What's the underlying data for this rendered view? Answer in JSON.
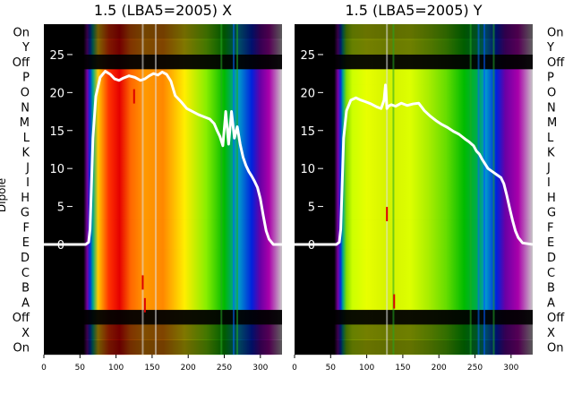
{
  "figure": {
    "ylabel": "Dipole",
    "left_row_labels": [
      "On",
      "Y",
      "Off",
      "P",
      "O",
      "N",
      "M",
      "L",
      "K",
      "J",
      "I",
      "H",
      "G",
      "F",
      "E",
      "D",
      "C",
      "B",
      "A",
      "Off",
      "X",
      "On"
    ],
    "right_row_labels": [
      "On",
      "Y",
      "Off",
      "P",
      "O",
      "N",
      "M",
      "L",
      "K",
      "J",
      "I",
      "H",
      "G",
      "F",
      "E",
      "D",
      "C",
      "B",
      "A",
      "Off",
      "X",
      "On"
    ]
  },
  "chart_data": [
    {
      "type": "heatmap",
      "title": "1.5 (LBA5=2005) X",
      "xlabel": "",
      "ylabel": "Dipole",
      "xlim": [
        0,
        330
      ],
      "x_ticks": [
        0,
        50,
        100,
        150,
        200,
        250,
        300
      ],
      "overlay_ylim": [
        -14.5,
        29
      ],
      "overlay_y_ticks": [
        0,
        5,
        10,
        15,
        20,
        25
      ],
      "colormap": "nipy_spectral",
      "grid": false,
      "bands": [
        {
          "label": "On",
          "intensity": 0.45
        },
        {
          "label": "X",
          "intensity": 0.5
        },
        {
          "label": "Off",
          "intensity": 0.05
        },
        {
          "label": "A",
          "intensity": 1.0
        },
        {
          "label": "B",
          "intensity": 1.0
        },
        {
          "label": "C",
          "intensity": 1.0
        },
        {
          "label": "D",
          "intensity": 1.0
        },
        {
          "label": "E",
          "intensity": 1.0
        },
        {
          "label": "F",
          "intensity": 1.0
        },
        {
          "label": "G",
          "intensity": 1.0
        },
        {
          "label": "H",
          "intensity": 1.0
        },
        {
          "label": "I",
          "intensity": 1.0
        },
        {
          "label": "J",
          "intensity": 1.0
        },
        {
          "label": "K",
          "intensity": 1.0
        },
        {
          "label": "L",
          "intensity": 1.0
        },
        {
          "label": "M",
          "intensity": 1.0
        },
        {
          "label": "N",
          "intensity": 1.0
        },
        {
          "label": "O",
          "intensity": 1.0
        },
        {
          "label": "P",
          "intensity": 1.0
        },
        {
          "label": "Off",
          "intensity": 0.05
        },
        {
          "label": "Y",
          "intensity": 0.5
        },
        {
          "label": "On",
          "intensity": 0.45
        }
      ],
      "spectrum_color_stops": [
        {
          "x": 0,
          "color": "#000000"
        },
        {
          "x": 55,
          "color": "#000000"
        },
        {
          "x": 60,
          "color": "#7a00a0"
        },
        {
          "x": 64,
          "color": "#0033dd"
        },
        {
          "x": 68,
          "color": "#00aa88"
        },
        {
          "x": 75,
          "color": "#ffcc00"
        },
        {
          "x": 90,
          "color": "#ff3300"
        },
        {
          "x": 105,
          "color": "#e60000"
        },
        {
          "x": 120,
          "color": "#ff6600"
        },
        {
          "x": 140,
          "color": "#ff9900"
        },
        {
          "x": 165,
          "color": "#ff8800"
        },
        {
          "x": 195,
          "color": "#ffee00"
        },
        {
          "x": 225,
          "color": "#88ee00"
        },
        {
          "x": 250,
          "color": "#00bb00"
        },
        {
          "x": 270,
          "color": "#0099cc"
        },
        {
          "x": 288,
          "color": "#0022dd"
        },
        {
          "x": 300,
          "color": "#6a00a6"
        },
        {
          "x": 312,
          "color": "#aa00aa"
        },
        {
          "x": 330,
          "color": "#c8c8c8"
        }
      ],
      "vertical_streaks": [
        {
          "x": 137,
          "color": "#e0e0e0"
        },
        {
          "x": 155,
          "color": "#e0e0e0"
        },
        {
          "x": 246,
          "color": "#22aa22"
        },
        {
          "x": 263,
          "color": "#0066ff"
        },
        {
          "x": 268,
          "color": "#22aa22"
        }
      ],
      "red_markers": [
        {
          "x": 125,
          "y": 19.5
        },
        {
          "x": 137,
          "y": -5
        },
        {
          "x": 140,
          "y": -8
        }
      ],
      "series": [
        {
          "x": [
            0,
            58,
            62,
            64,
            66,
            68,
            72,
            78,
            85,
            92,
            98,
            104,
            110,
            118,
            126,
            134,
            140,
            146,
            152,
            158,
            164,
            170,
            176,
            182,
            190,
            198,
            206,
            214,
            222,
            230,
            236,
            240,
            244,
            248,
            252,
            256,
            260,
            264,
            268,
            272,
            276,
            280,
            284,
            288,
            292,
            296,
            300,
            304,
            308,
            312,
            318,
            330
          ],
          "y": [
            0,
            0,
            0.3,
            2,
            8,
            14,
            19.5,
            22,
            22.8,
            22.4,
            21.8,
            21.6,
            21.9,
            22.2,
            22.0,
            21.6,
            21.8,
            22.2,
            22.5,
            22.3,
            22.7,
            22.4,
            21.5,
            19.6,
            18.8,
            17.9,
            17.5,
            17.1,
            16.8,
            16.5,
            15.9,
            15.0,
            14.2,
            13.0,
            17.5,
            13.2,
            17.5,
            14.0,
            15.5,
            13.2,
            11.5,
            10.4,
            9.6,
            9.0,
            8.3,
            7.5,
            6.0,
            3.8,
            1.8,
            0.7,
            0,
            0
          ]
        }
      ]
    },
    {
      "type": "heatmap",
      "title": "1.5 (LBA5=2005) Y",
      "xlabel": "",
      "ylabel": "",
      "xlim": [
        0,
        330
      ],
      "x_ticks": [
        0,
        50,
        100,
        150,
        200,
        250,
        300
      ],
      "overlay_ylim": [
        -14.5,
        29
      ],
      "overlay_y_ticks": [
        0,
        5,
        10,
        15,
        20,
        25
      ],
      "colormap": "nipy_spectral",
      "grid": false,
      "bands": [
        {
          "label": "On",
          "intensity": 0.45
        },
        {
          "label": "X",
          "intensity": 0.5
        },
        {
          "label": "Off",
          "intensity": 0.05
        },
        {
          "label": "A",
          "intensity": 1.0
        },
        {
          "label": "B",
          "intensity": 1.0
        },
        {
          "label": "C",
          "intensity": 1.0
        },
        {
          "label": "D",
          "intensity": 1.0
        },
        {
          "label": "E",
          "intensity": 1.0
        },
        {
          "label": "F",
          "intensity": 1.0
        },
        {
          "label": "G",
          "intensity": 1.0
        },
        {
          "label": "H",
          "intensity": 1.0
        },
        {
          "label": "I",
          "intensity": 1.0
        },
        {
          "label": "J",
          "intensity": 1.0
        },
        {
          "label": "K",
          "intensity": 1.0
        },
        {
          "label": "L",
          "intensity": 1.0
        },
        {
          "label": "M",
          "intensity": 1.0
        },
        {
          "label": "N",
          "intensity": 1.0
        },
        {
          "label": "O",
          "intensity": 1.0
        },
        {
          "label": "P",
          "intensity": 1.0
        },
        {
          "label": "Off",
          "intensity": 0.05
        },
        {
          "label": "Y",
          "intensity": 0.5
        },
        {
          "label": "On",
          "intensity": 0.45
        }
      ],
      "spectrum_color_stops": [
        {
          "x": 0,
          "color": "#000000"
        },
        {
          "x": 55,
          "color": "#000000"
        },
        {
          "x": 60,
          "color": "#7a00a0"
        },
        {
          "x": 64,
          "color": "#0033dd"
        },
        {
          "x": 67,
          "color": "#00aa88"
        },
        {
          "x": 72,
          "color": "#88dd00"
        },
        {
          "x": 80,
          "color": "#ccff00"
        },
        {
          "x": 100,
          "color": "#e8ff00"
        },
        {
          "x": 130,
          "color": "#d4f200"
        },
        {
          "x": 160,
          "color": "#ddff00"
        },
        {
          "x": 185,
          "color": "#aaee00"
        },
        {
          "x": 210,
          "color": "#66dd00"
        },
        {
          "x": 235,
          "color": "#00bb00"
        },
        {
          "x": 255,
          "color": "#00aa55"
        },
        {
          "x": 265,
          "color": "#0099cc"
        },
        {
          "x": 280,
          "color": "#0022dd"
        },
        {
          "x": 292,
          "color": "#6a00a6"
        },
        {
          "x": 310,
          "color": "#aa00aa"
        },
        {
          "x": 330,
          "color": "#c8c8c8"
        }
      ],
      "vertical_streaks": [
        {
          "x": 128,
          "color": "#e0e0e0"
        },
        {
          "x": 137,
          "color": "#22aa22"
        },
        {
          "x": 244,
          "color": "#22aa22"
        },
        {
          "x": 255,
          "color": "#0066ff"
        },
        {
          "x": 263,
          "color": "#0055ff"
        },
        {
          "x": 276,
          "color": "#22aa22"
        }
      ],
      "red_markers": [
        {
          "x": 128,
          "y": 4
        },
        {
          "x": 138,
          "y": -7.5
        }
      ],
      "series": [
        {
          "x": [
            0,
            58,
            62,
            64,
            66,
            68,
            72,
            78,
            85,
            92,
            98,
            106,
            114,
            120,
            124,
            126,
            128,
            130,
            134,
            140,
            148,
            156,
            164,
            172,
            180,
            188,
            196,
            204,
            212,
            220,
            228,
            236,
            242,
            248,
            252,
            256,
            260,
            264,
            268,
            274,
            280,
            286,
            290,
            294,
            298,
            302,
            306,
            310,
            316,
            330
          ],
          "y": [
            0,
            0,
            0.3,
            2,
            8,
            14,
            17.6,
            19.0,
            19.3,
            19.0,
            18.8,
            18.5,
            18.1,
            17.9,
            19.0,
            21.0,
            17.9,
            18.2,
            18.4,
            18.2,
            18.6,
            18.3,
            18.5,
            18.6,
            17.6,
            16.9,
            16.3,
            15.8,
            15.4,
            14.9,
            14.5,
            13.9,
            13.5,
            13.0,
            12.3,
            11.9,
            11.2,
            10.6,
            10.0,
            9.6,
            9.2,
            8.8,
            8.0,
            6.5,
            4.8,
            3.2,
            1.8,
            0.9,
            0.2,
            0
          ]
        }
      ]
    }
  ]
}
